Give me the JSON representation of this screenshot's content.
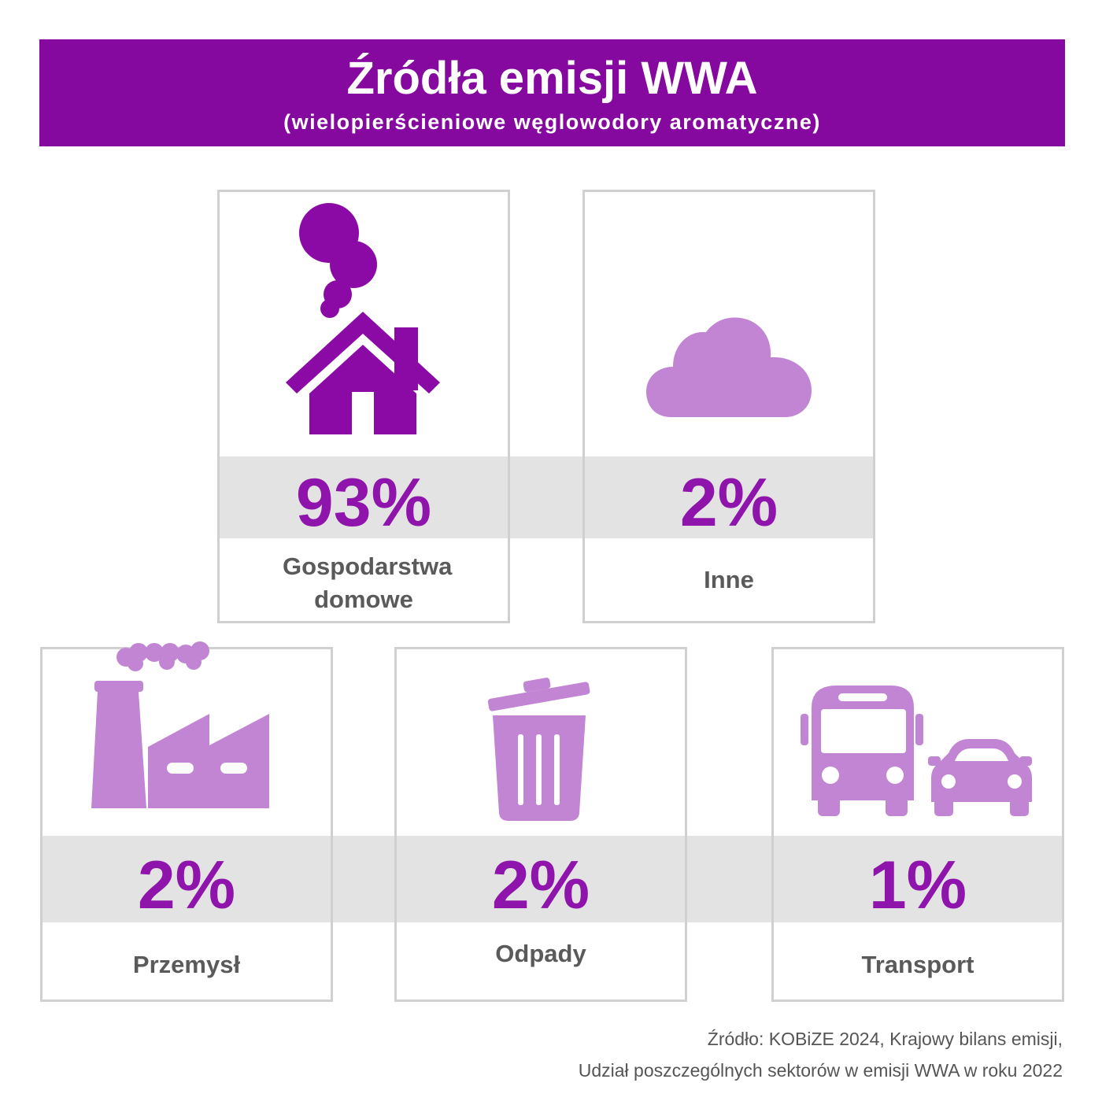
{
  "header": {
    "title": "Źródła emisji WWA",
    "subtitle": "(wielopierścieniowe węglowodory aromatyczne)"
  },
  "colors": {
    "header_bg": "#85089f",
    "percent_text": "#8e14ab",
    "icon_dark": "#8b0aa5",
    "icon_light": "#c185d4",
    "band": "#e3e3e3",
    "border": "#d0d0d0",
    "label_text": "#5a5a5a"
  },
  "cards": [
    {
      "percent": "93%",
      "value": 93,
      "label": "Gospodarstwa domowe",
      "icon": "house-with-chimney-smoke-icon"
    },
    {
      "percent": "2%",
      "value": 2,
      "label": "Inne",
      "icon": "cloud-icon"
    },
    {
      "percent": "2%",
      "value": 2,
      "label": "Przemysł",
      "icon": "factory-icon"
    },
    {
      "percent": "2%",
      "value": 2,
      "label": "Odpady",
      "icon": "trash-can-icon"
    },
    {
      "percent": "1%",
      "value": 1,
      "label": "Transport",
      "icon": "bus-and-car-icon"
    }
  ],
  "source": {
    "line1": "Źródło: KOBiZE 2024, Krajowy bilans emisji,",
    "line2": "Udział poszczególnych sektorów w emisji WWA w roku 2022"
  }
}
